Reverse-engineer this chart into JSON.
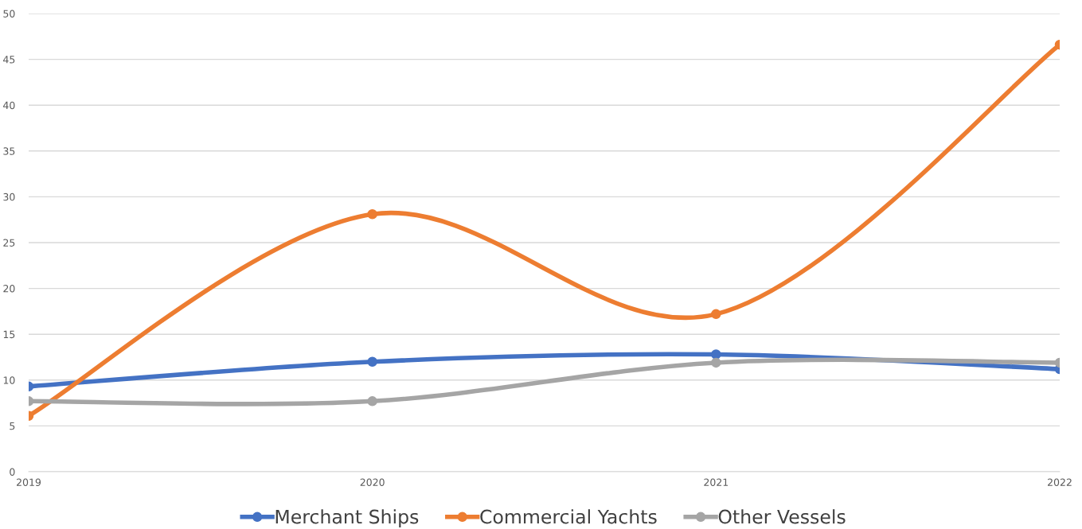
{
  "chart_data": {
    "type": "line",
    "categories": [
      "2019",
      "2020",
      "2021",
      "2022"
    ],
    "series": [
      {
        "name": "Merchant Ships",
        "color": "#4472c4",
        "values": [
          9.3,
          12.0,
          12.8,
          11.2
        ]
      },
      {
        "name": "Commercial Yachts",
        "color": "#ed7d31",
        "values": [
          6.1,
          28.1,
          17.2,
          46.6
        ]
      },
      {
        "name": "Other Vessels",
        "color": "#a5a5a5",
        "values": [
          7.7,
          7.7,
          11.9,
          11.9
        ]
      }
    ],
    "ylim": [
      0,
      50
    ],
    "yticks": [
      0,
      5,
      10,
      15,
      20,
      25,
      30,
      35,
      40,
      45,
      50
    ],
    "grid": "y",
    "legend": "bottom",
    "marker": "circle",
    "line_style": "solid"
  }
}
